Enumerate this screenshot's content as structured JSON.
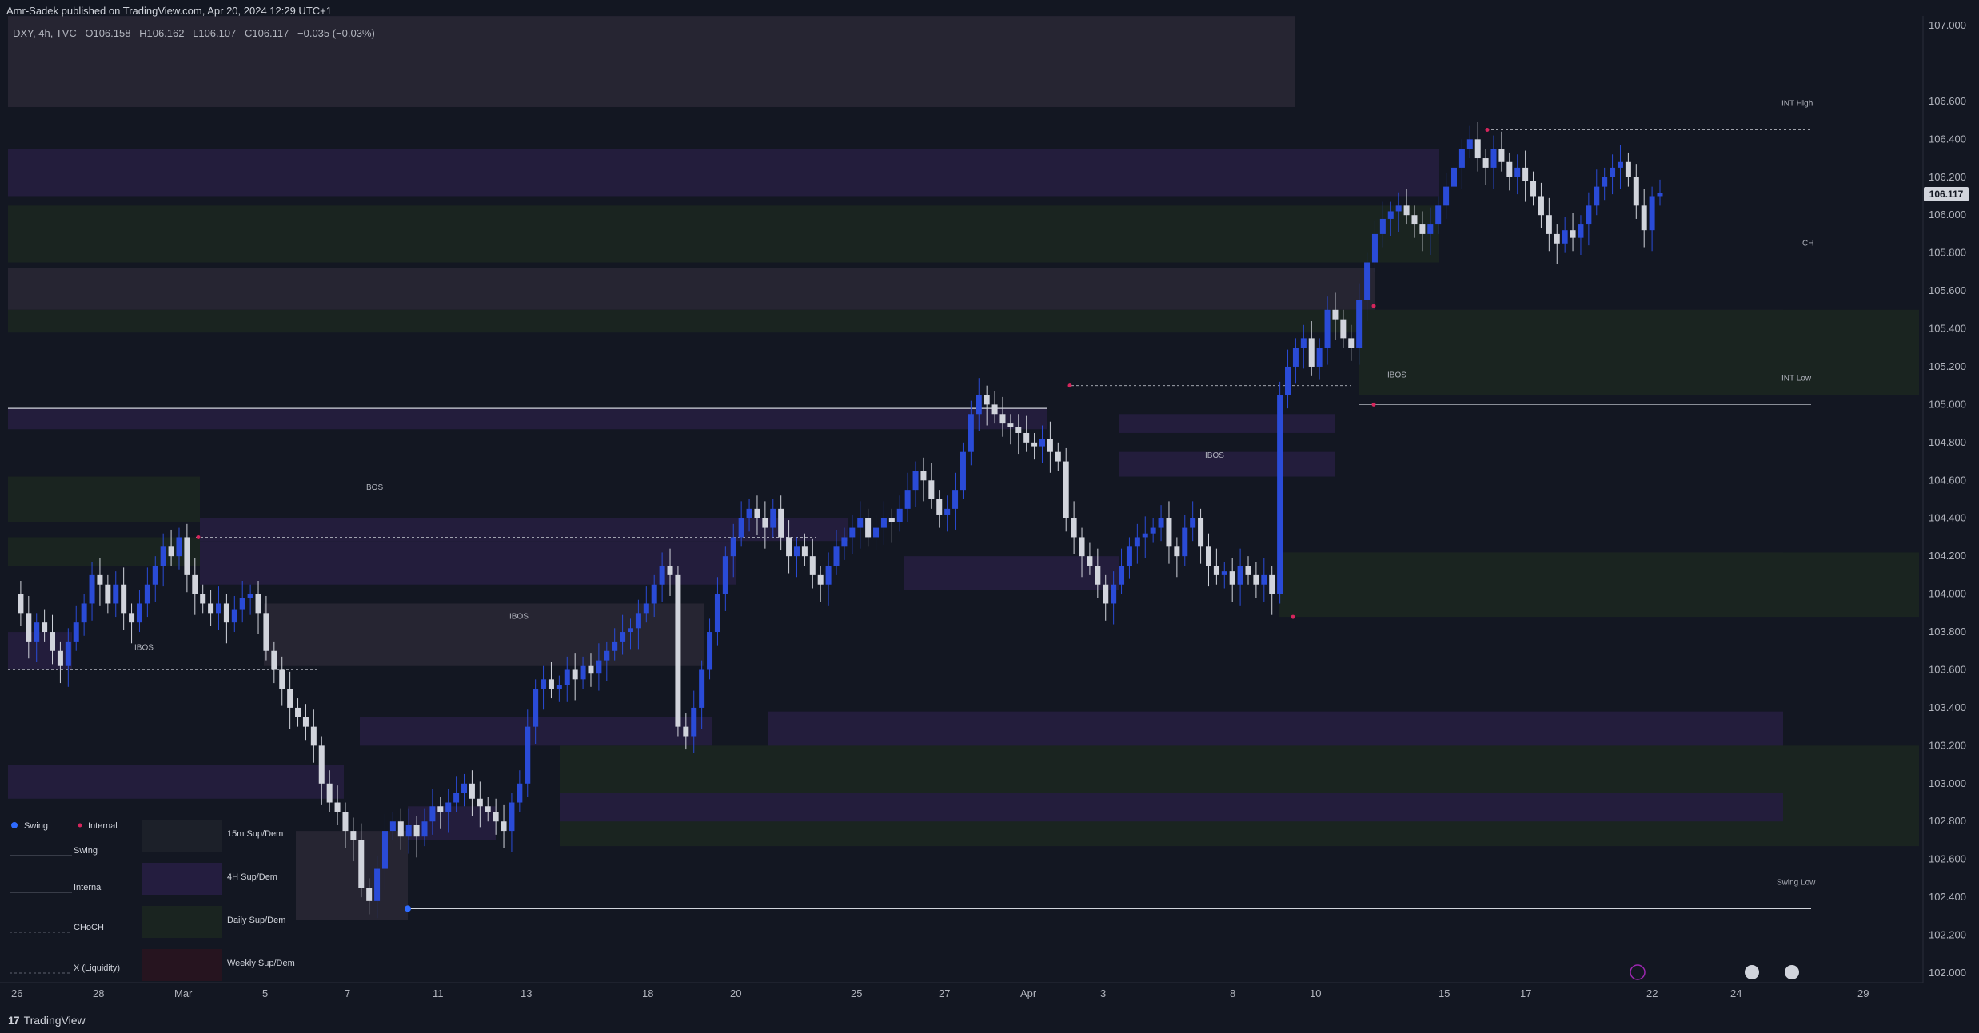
{
  "header": {
    "published": "Amr-Sadek published on TradingView.com, Apr 20, 2024 12:29 UTC+1"
  },
  "ohlc": {
    "symbol": "DXY, 4h, TVC",
    "open": "O106.158",
    "high": "H106.162",
    "low": "L106.107",
    "close": "C106.117",
    "change": "−0.035 (−0.03%)"
  },
  "price_tag": "106.117",
  "footer": {
    "brand": "TradingView"
  },
  "legend": {
    "swing": "Swing",
    "internal": "Internal",
    "swing_line": "Swing",
    "internal_line": "Internal",
    "choch": "CHoCH",
    "liquidity": "X (Liquidity)",
    "zone_15m": "15m Sup/Dem",
    "zone_4h": "4H Sup/Dem",
    "zone_daily": "Daily Sup/Dem",
    "zone_weekly": "Weekly Sup/Dem"
  },
  "colors": {
    "bull": "#2a4bd7",
    "bear": "#d1d4dc",
    "zone_purple": "#231d3c",
    "zone_green": "#1a2420",
    "zone_gray": "#262532",
    "internal_dot": "#d6255c",
    "swing_dot": "#2f6bff"
  },
  "chart_data": {
    "type": "candlestick",
    "symbol": "DXY",
    "timeframe": "4h",
    "ylim": [
      101.9,
      107.1
    ],
    "y_ticks": [
      "107.000",
      "106.600",
      "106.400",
      "106.200",
      "106.000",
      "105.800",
      "105.600",
      "105.400",
      "105.200",
      "105.000",
      "104.800",
      "104.600",
      "104.400",
      "104.200",
      "104.000",
      "103.800",
      "103.600",
      "103.400",
      "103.200",
      "103.000",
      "102.800",
      "102.600",
      "102.400",
      "102.200",
      "102.000"
    ],
    "x_ticks": [
      "26",
      "28",
      "Mar",
      "5",
      "7",
      "11",
      "13",
      "18",
      "20",
      "25",
      "27",
      "Apr",
      "3",
      "8",
      "10",
      "15",
      "17",
      "22",
      "24",
      "29"
    ],
    "last_price": 106.117,
    "annotations": [
      {
        "text": "BOS",
        "price": 104.98
      },
      {
        "text": "IBOS",
        "price": 104.3
      },
      {
        "text": "IBOS",
        "price": 103.6
      },
      {
        "text": "IBOS",
        "price": 105.12
      },
      {
        "text": "IBOS",
        "price": 105.56
      },
      {
        "text": "INT High",
        "price": 106.45
      },
      {
        "text": "INT Low",
        "price": 105.0
      },
      {
        "text": "CH",
        "price": 105.72
      },
      {
        "text": "Swing Low",
        "price": 102.34
      }
    ],
    "ohlc_path": [
      104.0,
      103.9,
      103.75,
      103.85,
      103.8,
      103.7,
      103.62,
      103.75,
      103.85,
      103.95,
      104.1,
      104.05,
      103.95,
      104.05,
      103.9,
      103.85,
      103.95,
      104.05,
      104.15,
      104.25,
      104.2,
      104.3,
      104.1,
      104.0,
      103.95,
      103.9,
      103.95,
      103.85,
      103.92,
      103.98,
      104.0,
      103.9,
      103.7,
      103.6,
      103.5,
      103.4,
      103.35,
      103.3,
      103.2,
      103.0,
      102.9,
      102.85,
      102.75,
      102.7,
      102.45,
      102.38,
      102.55,
      102.75,
      102.8,
      102.72,
      102.78,
      102.72,
      102.8,
      102.88,
      102.85,
      102.9,
      102.95,
      103.0,
      102.92,
      102.88,
      102.85,
      102.8,
      102.75,
      102.9,
      103.0,
      103.3,
      103.5,
      103.55,
      103.5,
      103.52,
      103.6,
      103.55,
      103.62,
      103.58,
      103.65,
      103.7,
      103.75,
      103.8,
      103.82,
      103.9,
      103.95,
      104.05,
      104.15,
      104.1,
      103.3,
      103.25,
      103.4,
      103.6,
      103.8,
      104.0,
      104.2,
      104.3,
      104.4,
      104.45,
      104.4,
      104.35,
      104.45,
      104.3,
      104.2,
      104.25,
      104.2,
      104.1,
      104.05,
      104.15,
      104.25,
      104.3,
      104.35,
      104.4,
      104.3,
      104.35,
      104.4,
      104.38,
      104.45,
      104.55,
      104.65,
      104.6,
      104.5,
      104.42,
      104.45,
      104.55,
      104.75,
      104.95,
      105.05,
      105.0,
      104.95,
      104.9,
      104.88,
      104.85,
      104.8,
      104.78,
      104.82,
      104.75,
      104.7,
      104.4,
      104.3,
      104.2,
      104.15,
      104.05,
      103.95,
      104.05,
      104.15,
      104.25,
      104.3,
      104.32,
      104.35,
      104.4,
      104.25,
      104.2,
      104.35,
      104.4,
      104.25,
      104.15,
      104.1,
      104.12,
      104.05,
      104.15,
      104.1,
      104.05,
      104.1,
      104.0,
      105.05,
      105.2,
      105.3,
      105.35,
      105.2,
      105.3,
      105.5,
      105.45,
      105.35,
      105.3,
      105.55,
      105.75,
      105.9,
      105.98,
      106.02,
      106.05,
      106.0,
      105.95,
      105.9,
      105.95,
      106.05,
      106.15,
      106.25,
      106.35,
      106.4,
      106.3,
      106.25,
      106.35,
      106.28,
      106.2,
      106.25,
      106.18,
      106.1,
      106.0,
      105.9,
      105.85,
      105.92,
      105.88,
      105.95,
      106.05,
      106.15,
      106.2,
      106.25,
      106.28,
      106.2,
      106.05,
      105.92,
      106.1,
      106.117
    ]
  }
}
